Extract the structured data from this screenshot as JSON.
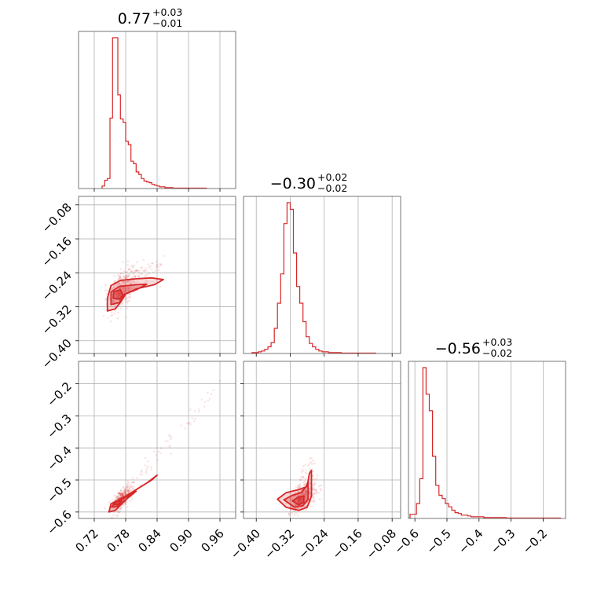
{
  "chart_data": {
    "type": "corner",
    "color": "#d62728",
    "parameters": [
      {
        "id": "p0",
        "range": [
          0.69,
          0.99
        ],
        "ticks": [
          0.72,
          0.78,
          0.84,
          0.9,
          0.96
        ],
        "tick_labels": [
          "0.72",
          "0.78",
          "0.84",
          "0.90",
          "0.96"
        ]
      },
      {
        "id": "p1",
        "range": [
          -0.43,
          -0.06
        ],
        "ticks": [
          -0.4,
          -0.32,
          -0.24,
          -0.16,
          -0.08
        ],
        "tick_labels": [
          "−0.40",
          "−0.32",
          "−0.24",
          "−0.16",
          "−0.08"
        ]
      },
      {
        "id": "p2",
        "range": [
          -0.62,
          -0.13
        ],
        "ticks": [
          -0.6,
          -0.5,
          -0.4,
          -0.3,
          -0.2
        ],
        "tick_labels": [
          "−0.6",
          "−0.5",
          "−0.4",
          "−0.3",
          "−0.2"
        ]
      }
    ],
    "titles": [
      {
        "value": "0.77",
        "plus": "+0.03",
        "minus": "−0.01"
      },
      {
        "value": "−0.30",
        "plus": "+0.02",
        "minus": "−0.02"
      },
      {
        "value": "−0.56",
        "plus": "+0.03",
        "minus": "−0.02"
      }
    ],
    "histograms": [
      {
        "param": 0,
        "edges_start": 0.735,
        "bin_width": 0.005,
        "counts": [
          3,
          10,
          12,
          85,
          182,
          182,
          113,
          84,
          80,
          57,
          53,
          33,
          30,
          20,
          17,
          12,
          9,
          8,
          7,
          5,
          4,
          3,
          2,
          2,
          1,
          1,
          1,
          0.5,
          0.5,
          0.5,
          0.5,
          0.5,
          0.5,
          0.5,
          0.5,
          0.5,
          0.5,
          0.5,
          0.5,
          0.5
        ]
      },
      {
        "param": 1,
        "edges_start": -0.41,
        "bin_width": 0.0075,
        "counts": [
          1,
          1,
          2,
          3,
          5,
          8,
          13,
          30,
          60,
          95,
          155,
          180,
          172,
          120,
          80,
          60,
          38,
          20,
          12,
          8,
          5,
          3,
          2,
          2,
          1,
          1,
          1,
          1,
          0.5,
          0.5,
          0.5,
          0.5,
          0.5,
          0.5,
          0.5,
          0.5,
          0.5,
          0.5,
          0.5
        ]
      },
      {
        "param": 2,
        "edges_start": -0.615,
        "bin_width": 0.01,
        "counts": [
          5,
          5,
          18,
          48,
          182,
          150,
          130,
          75,
          40,
          28,
          24,
          18,
          14,
          10,
          7,
          6,
          4,
          4,
          3,
          2,
          2,
          2,
          2,
          1,
          1,
          1,
          1,
          1,
          1,
          1,
          0.5,
          0.5,
          0.5,
          0.5,
          0.5,
          0.5,
          0.5,
          0.5,
          0.5,
          0.5,
          0.5,
          0.5,
          0.5,
          0.5,
          0.5,
          0.5,
          0.5
        ]
      }
    ],
    "scatter_panels": [
      {
        "x_param": 0,
        "y_param": 1,
        "center": [
          0.765,
          -0.285
        ],
        "slope": 1.1,
        "spread": [
          0.018,
          0.02
        ],
        "tail": [
          0.86,
          -0.21
        ],
        "contours": [
          [
            [
              0.745,
              -0.33
            ],
            [
              0.745,
              -0.3
            ],
            [
              0.752,
              -0.27
            ],
            [
              0.77,
              -0.258
            ],
            [
              0.8,
              -0.254
            ],
            [
              0.83,
              -0.252
            ],
            [
              0.852,
              -0.256
            ],
            [
              0.835,
              -0.268
            ],
            [
              0.8,
              -0.278
            ],
            [
              0.78,
              -0.29
            ],
            [
              0.77,
              -0.31
            ],
            [
              0.76,
              -0.325
            ]
          ],
          [
            [
              0.752,
              -0.315
            ],
            [
              0.752,
              -0.285
            ],
            [
              0.768,
              -0.272
            ],
            [
              0.8,
              -0.268
            ],
            [
              0.82,
              -0.267
            ],
            [
              0.8,
              -0.28
            ],
            [
              0.778,
              -0.29
            ],
            [
              0.768,
              -0.31
            ]
          ],
          [
            [
              0.756,
              -0.3
            ],
            [
              0.757,
              -0.285
            ],
            [
              0.77,
              -0.28
            ],
            [
              0.775,
              -0.292
            ],
            [
              0.768,
              -0.302
            ]
          ]
        ]
      },
      {
        "x_param": 0,
        "y_param": 2,
        "center": [
          0.765,
          -0.57
        ],
        "slope": 1.5,
        "spread": [
          0.012,
          0.015
        ],
        "tail": [
          0.97,
          -0.18
        ],
        "contours": [
          [
            [
              0.748,
              -0.6
            ],
            [
              0.752,
              -0.575
            ],
            [
              0.775,
              -0.555
            ],
            [
              0.82,
              -0.51
            ],
            [
              0.84,
              -0.485
            ],
            [
              0.83,
              -0.5
            ],
            [
              0.8,
              -0.53
            ],
            [
              0.775,
              -0.57
            ],
            [
              0.76,
              -0.595
            ]
          ],
          [
            [
              0.753,
              -0.585
            ],
            [
              0.76,
              -0.568
            ],
            [
              0.785,
              -0.55
            ],
            [
              0.8,
              -0.535
            ],
            [
              0.785,
              -0.555
            ],
            [
              0.766,
              -0.582
            ]
          ],
          [
            [
              0.757,
              -0.576
            ],
            [
              0.764,
              -0.566
            ],
            [
              0.772,
              -0.566
            ],
            [
              0.765,
              -0.578
            ]
          ]
        ]
      },
      {
        "x_param": 1,
        "y_param": 2,
        "center": [
          -0.3,
          -0.565
        ],
        "slope": 0.9,
        "spread": [
          0.02,
          0.018
        ],
        "tail": [
          -0.27,
          -0.44
        ],
        "contours": [
          [
            [
              -0.35,
              -0.56
            ],
            [
              -0.33,
              -0.54
            ],
            [
              -0.3,
              -0.53
            ],
            [
              -0.28,
              -0.52
            ],
            [
              -0.275,
              -0.48
            ],
            [
              -0.27,
              -0.47
            ],
            [
              -0.27,
              -0.55
            ],
            [
              -0.28,
              -0.585
            ],
            [
              -0.3,
              -0.595
            ],
            [
              -0.33,
              -0.585
            ]
          ],
          [
            [
              -0.335,
              -0.562
            ],
            [
              -0.315,
              -0.548
            ],
            [
              -0.295,
              -0.54
            ],
            [
              -0.282,
              -0.52
            ],
            [
              -0.278,
              -0.505
            ],
            [
              -0.278,
              -0.56
            ],
            [
              -0.29,
              -0.58
            ],
            [
              -0.31,
              -0.585
            ]
          ],
          [
            [
              -0.315,
              -0.565
            ],
            [
              -0.3,
              -0.553
            ],
            [
              -0.288,
              -0.55
            ],
            [
              -0.288,
              -0.57
            ],
            [
              -0.3,
              -0.578
            ]
          ]
        ]
      }
    ],
    "grid": true
  }
}
